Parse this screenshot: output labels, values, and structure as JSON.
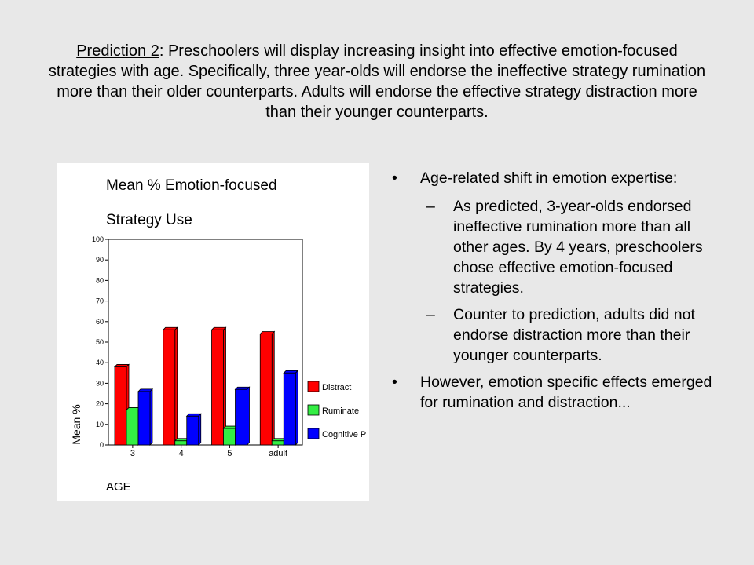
{
  "heading": {
    "prediction_label": "Prediction 2",
    "text": ": Preschoolers will display increasing insight into effective emotion-focused strategies with age.  Specifically, three year-olds will endorse the ineffective strategy rumination more than their older counterparts.  Adults will endorse the effective strategy distraction more than their younger counterparts."
  },
  "bullets": {
    "b1_text": "Age-related shift in emotion expertise",
    "b1_suffix": ":",
    "sub1": "As predicted, 3-year-olds endorsed ineffective rumination more than all other ages. By 4 years, preschoolers chose effective emotion-focused strategies.",
    "sub2": "Counter to prediction, adults did not endorse distraction more than their younger counterparts.",
    "b2_text": "However, emotion specific effects emerged for rumination and  distraction..."
  },
  "chart_data": {
    "type": "bar",
    "title_line1": "Mean % Emotion-focused",
    "title_line2": "Strategy Use",
    "xlabel": "AGE",
    "ylabel": "Mean %",
    "categories": [
      "3",
      "4",
      "5",
      "adult"
    ],
    "ylim": [
      0,
      100
    ],
    "yticks": [
      "0",
      "10",
      "20",
      "30",
      "40",
      "50",
      "60",
      "70",
      "80",
      "90",
      "100"
    ],
    "series": [
      {
        "name": "Distract",
        "values": [
          38,
          56,
          56,
          54
        ],
        "color": "#ff0000"
      },
      {
        "name": "Ruminate",
        "values": [
          17,
          2,
          8,
          2
        ],
        "color": "#33ee44"
      },
      {
        "name": "Cognitive P",
        "values": [
          26,
          14,
          27,
          35
        ],
        "color": "#0000ff"
      }
    ],
    "legend_position": "right",
    "grid": false
  }
}
